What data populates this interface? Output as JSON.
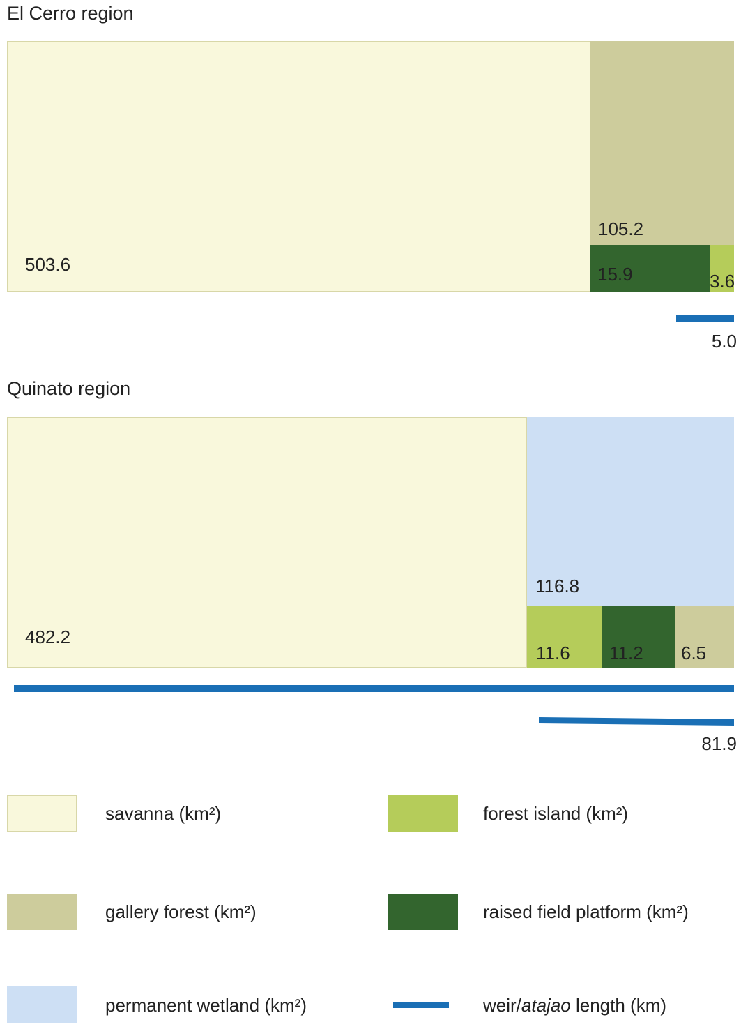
{
  "colors": {
    "savanna": "#f9f8dc",
    "savanna_border": "#d8d7a8",
    "gallery_forest": "#cdcc9c",
    "forest_island": "#b5cc5a",
    "raised_field": "#33652e",
    "wetland": "#cddff4",
    "weir": "#1a6fb5"
  },
  "chart_data": [
    {
      "type": "treemap",
      "title": "El Cerro region",
      "cells": [
        {
          "category": "savanna",
          "value": 503.6,
          "label": "503.6"
        },
        {
          "category": "gallery forest",
          "value": 105.2,
          "label": "105.2"
        },
        {
          "category": "raised field platform",
          "value": 15.9,
          "label": "15.9"
        },
        {
          "category": "forest island",
          "value": 3.6,
          "label": "3.6"
        }
      ],
      "weir_length_km": 5.0,
      "weir_label": "5.0"
    },
    {
      "type": "treemap",
      "title": "Quinato region",
      "cells": [
        {
          "category": "savanna",
          "value": 482.2,
          "label": "482.2"
        },
        {
          "category": "permanent wetland",
          "value": 116.8,
          "label": "116.8"
        },
        {
          "category": "forest island",
          "value": 11.6,
          "label": "11.6"
        },
        {
          "category": "raised field platform",
          "value": 11.2,
          "label": "11.2"
        },
        {
          "category": "gallery forest",
          "value": 6.5,
          "label": "6.5"
        }
      ],
      "weir_length_km": 81.9,
      "weir_label": "81.9"
    }
  ],
  "legend": {
    "savanna": "savanna (km²)",
    "forest_island": "forest island (km²)",
    "gallery_forest": "gallery forest (km²)",
    "raised_field": "raised field platform (km²)",
    "wetland": "permanent wetland (km²)",
    "weir_prefix": "weir/",
    "weir_italic": "atajao",
    "weir_suffix": " length (km)"
  }
}
